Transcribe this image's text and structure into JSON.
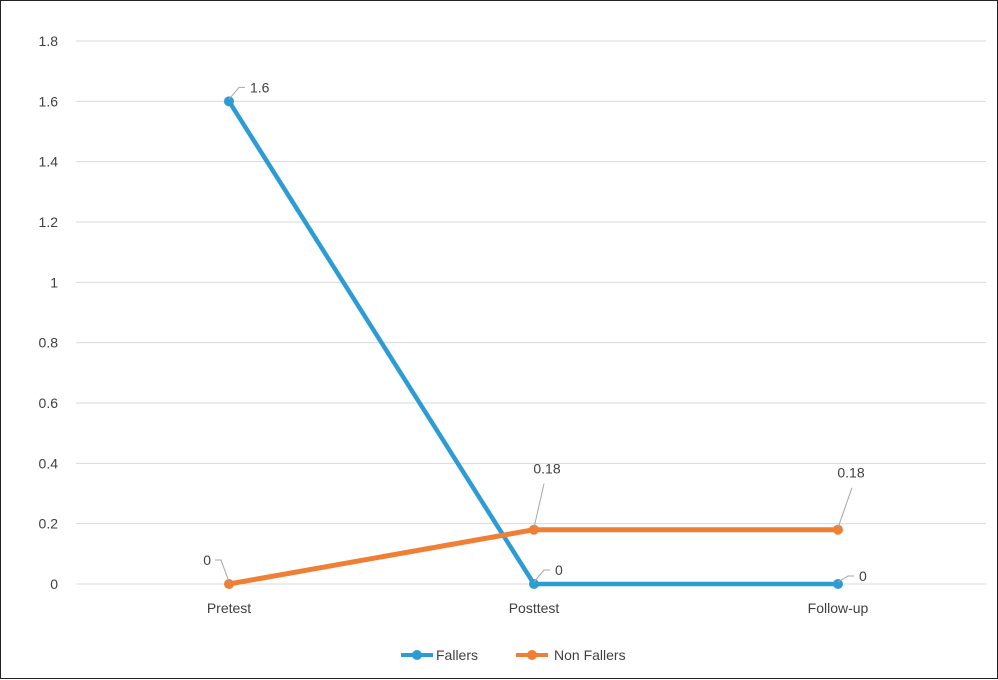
{
  "chart_data": {
    "type": "line",
    "categories": [
      "Pretest",
      "Posttest",
      "Follow-up"
    ],
    "series": [
      {
        "name": "Fallers",
        "color": "#2E9CD4",
        "values": [
          1.6,
          0,
          0
        ],
        "labels": [
          "1.6",
          "0",
          "0"
        ]
      },
      {
        "name": "Non Fallers",
        "color": "#F07F36",
        "values": [
          0,
          0.18,
          0.18
        ],
        "labels": [
          "0",
          "0.18",
          "0.18"
        ]
      }
    ],
    "ylim": [
      0,
      1.8
    ],
    "yticks": [
      "0",
      "0.2",
      "0.4",
      "0.6",
      "0.8",
      "1",
      "1.2",
      "1.4",
      "1.6",
      "1.8"
    ],
    "grid": true,
    "legend_position": "bottom",
    "title": "",
    "xlabel": "",
    "ylabel": ""
  }
}
